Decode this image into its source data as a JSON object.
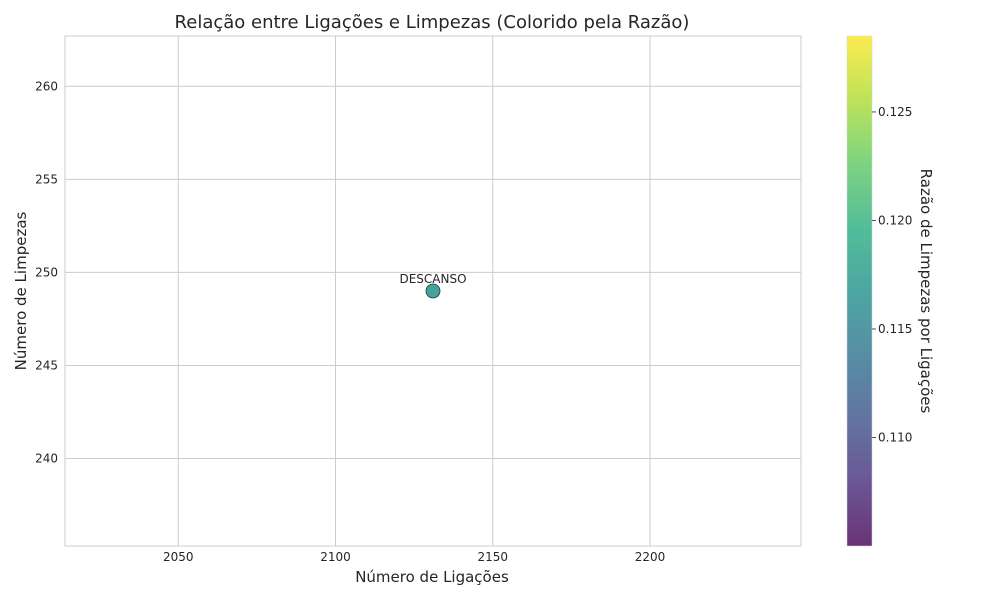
{
  "chart_data": {
    "type": "scatter",
    "title": "Relação entre Ligações e Limpezas (Colorido pela Razão)",
    "xlabel": "Número de Ligações",
    "ylabel": "Número de Limpezas",
    "xlim": [
      2014,
      2248
    ],
    "ylim": [
      235.3,
      262.7
    ],
    "x_ticks": [
      2050,
      2100,
      2150,
      2200
    ],
    "y_ticks": [
      240,
      245,
      250,
      255,
      260
    ],
    "grid": true,
    "points": [
      {
        "label": "DESCANSO",
        "x": 2131,
        "y": 249,
        "ratio": 0.1169
      }
    ],
    "colorbar": {
      "label": "Razão de Limpezas por Ligações",
      "min": 0.105,
      "max": 0.1285,
      "ticks": [
        "0.110",
        "0.115",
        "0.120",
        "0.125"
      ],
      "colormap": "viridis"
    }
  }
}
